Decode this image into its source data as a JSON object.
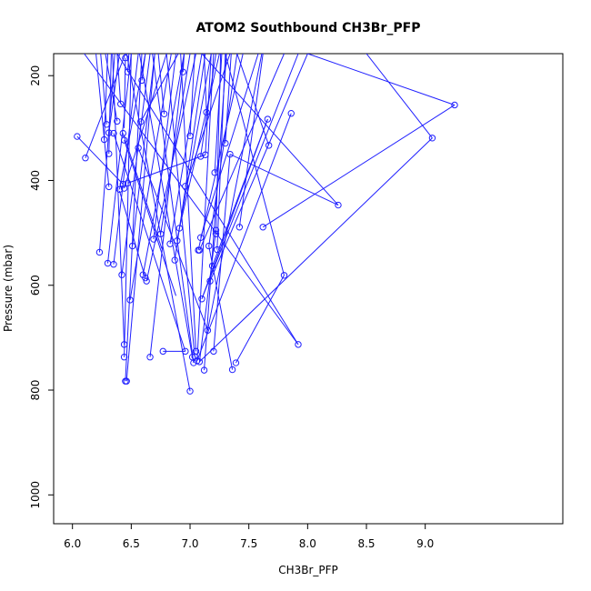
{
  "chart_data": {
    "type": "scatter",
    "title": "ATOM2 Southbound CH3Br_PFP",
    "xlabel": "CH3Br_PFP",
    "ylabel": "Pressure (mbar)",
    "xlim": [
      5.84,
      10.17
    ],
    "ylim": [
      1055,
      158
    ],
    "x_ticks": [
      6.0,
      6.5,
      7.0,
      7.5,
      8.0,
      8.5,
      9.0
    ],
    "x_tick_labels": [
      "6.0",
      "6.5",
      "7.0",
      "7.5",
      "8.0",
      "8.5",
      "9.0"
    ],
    "y_ticks": [
      200,
      400,
      600,
      800,
      1000
    ],
    "y_tick_labels": [
      "200",
      "400",
      "600",
      "800",
      "1000"
    ],
    "series_color": "#1f1fff",
    "grid": false,
    "points": [
      [
        6.04,
        316
      ],
      [
        6.11,
        357
      ],
      [
        6.23,
        537
      ],
      [
        6.27,
        322
      ],
      [
        6.29,
        293
      ],
      [
        6.3,
        558
      ],
      [
        6.31,
        309
      ],
      [
        6.31,
        349
      ],
      [
        6.31,
        412
      ],
      [
        6.35,
        310
      ],
      [
        6.35,
        560
      ],
      [
        6.38,
        287
      ],
      [
        6.4,
        417
      ],
      [
        6.41,
        254
      ],
      [
        6.42,
        580
      ],
      [
        6.43,
        310
      ],
      [
        6.43,
        407
      ],
      [
        6.44,
        323
      ],
      [
        6.44,
        713
      ],
      [
        6.44,
        737
      ],
      [
        6.44,
        415
      ],
      [
        6.45,
        783
      ],
      [
        6.45,
        166
      ],
      [
        6.46,
        783
      ],
      [
        6.47,
        193
      ],
      [
        6.47,
        405
      ],
      [
        6.49,
        628
      ],
      [
        6.51,
        525
      ],
      [
        6.56,
        338
      ],
      [
        6.58,
        288
      ],
      [
        6.59,
        209
      ],
      [
        6.6,
        580
      ],
      [
        6.62,
        586
      ],
      [
        6.63,
        592
      ],
      [
        6.66,
        737
      ],
      [
        6.69,
        512
      ],
      [
        6.75,
        502
      ],
      [
        6.77,
        726
      ],
      [
        6.78,
        273
      ],
      [
        6.83,
        521
      ],
      [
        6.87,
        552
      ],
      [
        6.89,
        515
      ],
      [
        6.91,
        491
      ],
      [
        6.94,
        193
      ],
      [
        6.96,
        726
      ],
      [
        6.96,
        411
      ],
      [
        7.0,
        315
      ],
      [
        7.0,
        802
      ],
      [
        7.02,
        737
      ],
      [
        7.03,
        748
      ],
      [
        7.04,
        736
      ],
      [
        7.05,
        726
      ],
      [
        7.06,
        744
      ],
      [
        7.07,
        533
      ],
      [
        7.08,
        533
      ],
      [
        7.08,
        746
      ],
      [
        7.09,
        354
      ],
      [
        7.09,
        509
      ],
      [
        7.1,
        626
      ],
      [
        7.12,
        762
      ],
      [
        7.13,
        351
      ],
      [
        7.14,
        270
      ],
      [
        7.15,
        686
      ],
      [
        7.16,
        525
      ],
      [
        7.17,
        592
      ],
      [
        7.19,
        563
      ],
      [
        7.2,
        726
      ],
      [
        7.21,
        385
      ],
      [
        7.22,
        495
      ],
      [
        7.22,
        502
      ],
      [
        7.23,
        532
      ],
      [
        7.3,
        329
      ],
      [
        7.34,
        350
      ],
      [
        7.36,
        761
      ],
      [
        7.39,
        748
      ],
      [
        7.42,
        489
      ],
      [
        7.62,
        489
      ],
      [
        7.66,
        283
      ],
      [
        7.67,
        333
      ],
      [
        7.8,
        581
      ],
      [
        7.86,
        272
      ],
      [
        7.92,
        713
      ],
      [
        8.26,
        447
      ],
      [
        9.06,
        319
      ],
      [
        9.25,
        256
      ]
    ],
    "segments": [
      [
        6.04,
        316,
        6.43,
        407
      ],
      [
        6.11,
        357,
        6.45,
        158
      ],
      [
        6.23,
        537,
        6.36,
        158
      ],
      [
        6.27,
        322,
        6.3,
        158
      ],
      [
        6.29,
        293,
        6.24,
        158
      ],
      [
        6.3,
        558,
        6.5,
        158
      ],
      [
        6.31,
        309,
        6.4,
        158
      ],
      [
        6.31,
        349,
        6.33,
        158
      ],
      [
        6.31,
        412,
        6.2,
        158
      ],
      [
        6.35,
        310,
        6.96,
        726
      ],
      [
        6.35,
        560,
        6.56,
        158
      ],
      [
        6.38,
        287,
        6.28,
        158
      ],
      [
        6.4,
        417,
        6.62,
        158
      ],
      [
        6.41,
        254,
        6.38,
        158
      ],
      [
        6.42,
        580,
        6.66,
        158
      ],
      [
        6.43,
        310,
        6.76,
        530
      ],
      [
        6.44,
        323,
        6.88,
        620
      ],
      [
        6.44,
        713,
        6.34,
        158
      ],
      [
        6.44,
        737,
        6.5,
        158
      ],
      [
        6.44,
        415,
        6.8,
        158
      ],
      [
        6.45,
        783,
        6.59,
        158
      ],
      [
        6.46,
        783,
        6.7,
        158
      ],
      [
        6.45,
        166,
        6.44,
        300
      ],
      [
        6.47,
        193,
        6.48,
        158
      ],
      [
        6.47,
        405,
        7.13,
        351
      ],
      [
        6.49,
        628,
        6.84,
        158
      ],
      [
        6.51,
        525,
        6.7,
        158
      ],
      [
        6.56,
        338,
        7.15,
        686
      ],
      [
        6.58,
        288,
        6.9,
        158
      ],
      [
        6.59,
        209,
        6.62,
        158
      ],
      [
        6.6,
        580,
        6.95,
        158
      ],
      [
        6.62,
        586,
        6.4,
        420
      ],
      [
        6.63,
        592,
        7.05,
        158
      ],
      [
        6.66,
        737,
        6.95,
        158
      ],
      [
        6.69,
        512,
        6.88,
        158
      ],
      [
        6.75,
        502,
        7.0,
        158
      ],
      [
        6.77,
        726,
        6.96,
        726
      ],
      [
        6.78,
        273,
        6.73,
        158
      ],
      [
        6.83,
        521,
        7.1,
        158
      ],
      [
        6.87,
        552,
        7.13,
        158
      ],
      [
        6.89,
        515,
        7.18,
        158
      ],
      [
        6.91,
        491,
        7.25,
        158
      ],
      [
        6.94,
        193,
        6.95,
        158
      ],
      [
        6.96,
        411,
        7.34,
        158
      ],
      [
        7.0,
        315,
        7.04,
        158
      ],
      [
        7.0,
        802,
        6.46,
        158
      ],
      [
        7.02,
        737,
        6.57,
        158
      ],
      [
        7.03,
        748,
        6.68,
        158
      ],
      [
        7.04,
        736,
        6.8,
        158
      ],
      [
        7.05,
        726,
        6.92,
        158
      ],
      [
        7.06,
        744,
        7.2,
        158
      ],
      [
        7.07,
        533,
        7.45,
        158
      ],
      [
        7.08,
        533,
        7.8,
        158
      ],
      [
        7.08,
        746,
        7.22,
        495
      ],
      [
        7.09,
        354,
        7.22,
        158
      ],
      [
        7.09,
        509,
        7.58,
        158
      ],
      [
        7.1,
        626,
        7.92,
        158
      ],
      [
        7.12,
        762,
        7.31,
        158
      ],
      [
        7.13,
        351,
        7.18,
        158
      ],
      [
        7.14,
        270,
        7.12,
        158
      ],
      [
        7.15,
        686,
        7.61,
        158
      ],
      [
        7.16,
        525,
        7.4,
        158
      ],
      [
        7.17,
        592,
        8.0,
        158
      ],
      [
        7.19,
        563,
        7.66,
        283
      ],
      [
        7.2,
        726,
        7.34,
        350
      ],
      [
        7.21,
        385,
        7.27,
        158
      ],
      [
        7.22,
        502,
        7.26,
        158
      ],
      [
        7.23,
        532,
        7.3,
        158
      ],
      [
        7.3,
        329,
        7.35,
        158
      ],
      [
        7.34,
        350,
        8.26,
        447
      ],
      [
        7.36,
        761,
        7.16,
        525
      ],
      [
        7.39,
        748,
        7.8,
        581
      ],
      [
        7.42,
        489,
        7.62,
        158
      ],
      [
        7.62,
        489,
        9.25,
        256
      ],
      [
        7.66,
        283,
        7.1,
        626
      ],
      [
        7.67,
        333,
        7.4,
        158
      ],
      [
        7.8,
        581,
        7.3,
        158
      ],
      [
        7.86,
        272,
        7.06,
        744
      ],
      [
        7.92,
        713,
        6.38,
        158
      ],
      [
        7.92,
        713,
        6.1,
        158
      ],
      [
        8.26,
        447,
        7.1,
        158
      ],
      [
        9.06,
        319,
        7.08,
        746
      ],
      [
        9.06,
        319,
        8.5,
        158
      ],
      [
        9.25,
        256,
        8.0,
        158
      ]
    ]
  }
}
